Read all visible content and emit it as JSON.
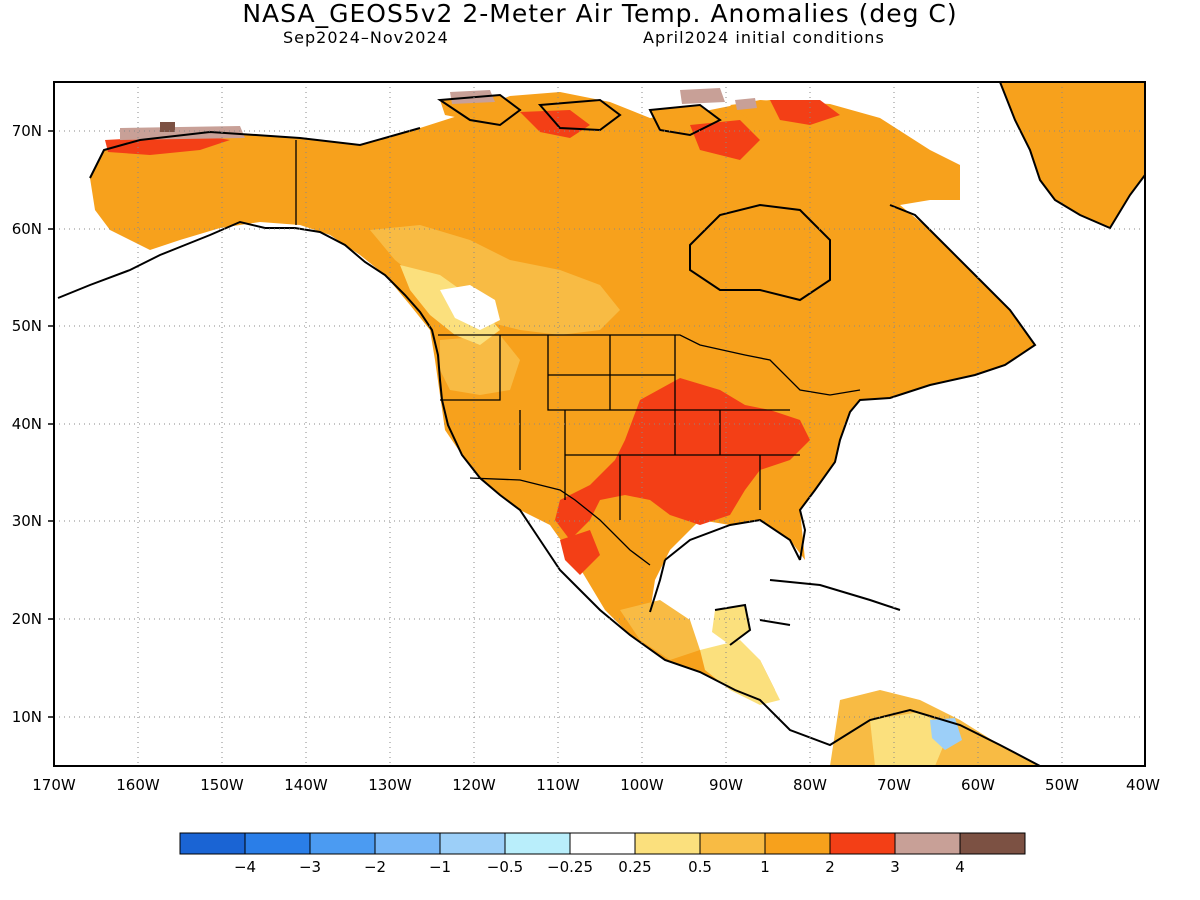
{
  "header": {
    "title": "NASA_GEOS5v2 2-Meter Air Temp. Anomalies (deg C)",
    "period": "Sep2024–Nov2024",
    "init": "April2024 initial conditions"
  },
  "map": {
    "lon_range": [
      -170,
      -40
    ],
    "lat_range": [
      5,
      75
    ],
    "lat_ticks": [
      "70N",
      "60N",
      "50N",
      "40N",
      "30N",
      "20N",
      "10N"
    ],
    "lon_ticks": [
      "170W",
      "160W",
      "150W",
      "140W",
      "130W",
      "120W",
      "110W",
      "100W",
      "90W",
      "80W",
      "70W",
      "60W",
      "50W",
      "40W"
    ],
    "grid": true,
    "projection": "plate carree (lat/lon)"
  },
  "colorbar": {
    "colors": [
      "#1a64d4",
      "#2a7ee8",
      "#4b9bf2",
      "#78b7f7",
      "#9ccff8",
      "#b9eefb",
      "#ffffff",
      "#fbe07d",
      "#f8bb44",
      "#f7a11c",
      "#f33f16",
      "#c8a097",
      "#7c5143"
    ],
    "labels": [
      "−4",
      "−3",
      "−2",
      "−1",
      "−0.5",
      "−0.25",
      "0.25",
      "0.5",
      "1",
      "2",
      "3",
      "4"
    ]
  },
  "colors": {
    "anomaly_0_25_0_5": "#fbe07d",
    "anomaly_0_5_1": "#f8bb44",
    "anomaly_1_2": "#f7a11c",
    "anomaly_2_3": "#f33f16",
    "anomaly_3_4": "#c8a097",
    "anomaly_gt_4": "#7c5143",
    "anomaly_neg": "#9ccff8"
  }
}
